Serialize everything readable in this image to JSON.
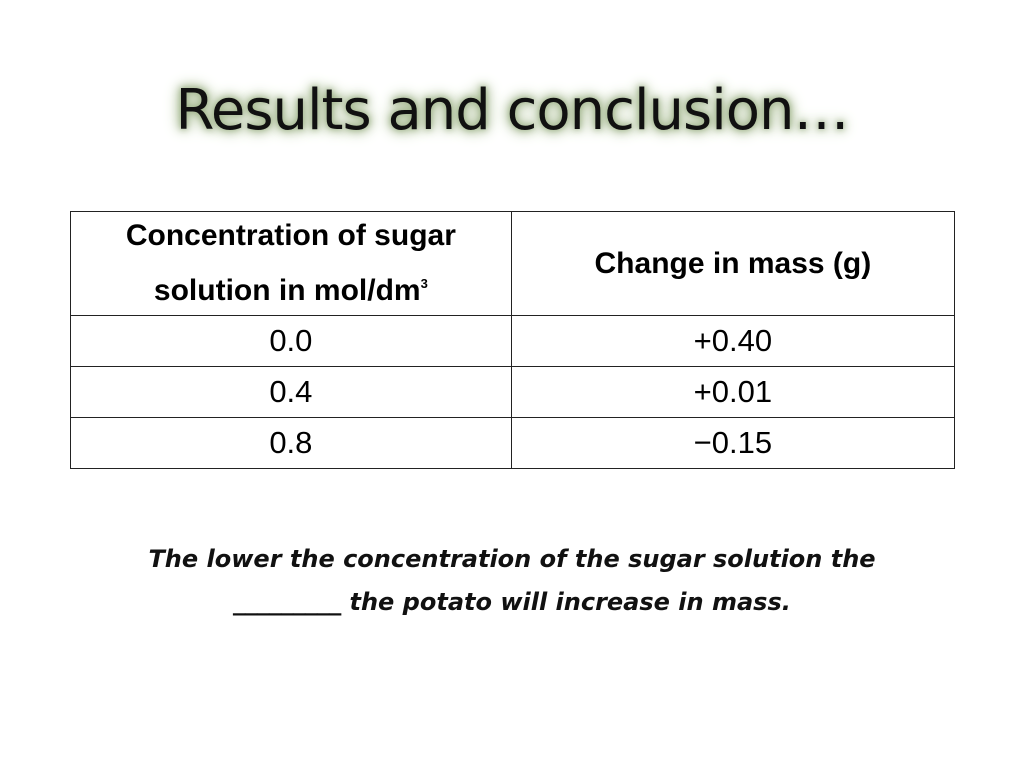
{
  "slide": {
    "title": "Results and conclusion…"
  },
  "table": {
    "headers": {
      "concentration": "Concentration of sugar solution in mol/dm",
      "concentration_superscript": "3",
      "mass_change": "Change in mass (g)"
    },
    "rows": [
      {
        "concentration": "0.0",
        "mass_change": "+0.40"
      },
      {
        "concentration": "0.4",
        "mass_change": "+0.01"
      },
      {
        "concentration": "0.8",
        "mass_change": "−0.15"
      }
    ]
  },
  "conclusion": {
    "line1": "The lower the concentration of the sugar solution the",
    "line2": "_________ the potato will increase in mass."
  }
}
